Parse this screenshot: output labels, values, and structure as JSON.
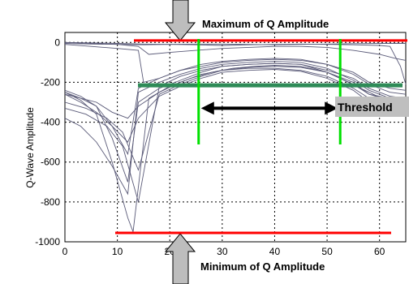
{
  "chart_data": {
    "type": "line",
    "title": "",
    "xlabel": "",
    "ylabel": "Q-Wave Amplitude",
    "xlim": [
      0,
      65
    ],
    "ylim": [
      -1000,
      50
    ],
    "x_ticks": [
      0,
      10,
      20,
      30,
      40,
      50,
      60
    ],
    "y_ticks": [
      0,
      -200,
      -400,
      -600,
      -800,
      -1000
    ],
    "x_tick_labels": [
      "0",
      "10",
      "20",
      "30",
      "40",
      "50",
      "60"
    ],
    "y_tick_labels": [
      "0",
      "-200",
      "-400",
      "-600",
      "-800",
      "-1000"
    ],
    "grid": true,
    "series": [
      {
        "x": [
          0,
          3,
          6,
          9,
          12,
          14,
          18,
          22,
          26,
          30,
          35,
          40,
          45,
          50,
          55,
          58,
          62,
          65
        ],
        "values": [
          -250,
          -280,
          -300,
          -350,
          -380,
          -320,
          -250,
          -200,
          -160,
          -140,
          -130,
          -130,
          -140,
          -170,
          -230,
          -280,
          -300,
          -300
        ]
      },
      {
        "x": [
          0,
          3,
          6,
          9,
          12,
          14,
          18,
          22,
          26,
          30,
          35,
          40,
          45,
          50,
          55,
          58,
          62,
          65
        ],
        "values": [
          -260,
          -300,
          -350,
          -420,
          -500,
          -380,
          -270,
          -220,
          -180,
          -150,
          -140,
          -135,
          -145,
          -180,
          -240,
          -300,
          -320,
          -320
        ]
      },
      {
        "x": [
          0,
          3,
          6,
          9,
          12,
          14,
          18,
          22,
          26,
          30,
          35,
          40,
          45,
          50,
          55,
          58,
          62,
          65
        ],
        "values": [
          -240,
          -270,
          -320,
          -480,
          -700,
          -300,
          -230,
          -190,
          -150,
          -120,
          -110,
          -105,
          -110,
          -150,
          -200,
          -260,
          -280,
          -280
        ]
      },
      {
        "x": [
          0,
          3,
          6,
          9,
          12,
          13,
          16,
          20,
          24,
          28,
          32,
          36,
          40,
          45,
          50,
          54,
          58,
          62,
          65
        ],
        "values": [
          -250,
          -290,
          -360,
          -600,
          -880,
          -950,
          -280,
          -220,
          -180,
          -150,
          -130,
          -120,
          -115,
          -120,
          -150,
          -200,
          -250,
          -300,
          -320
        ]
      },
      {
        "x": [
          0,
          3,
          6,
          9,
          12,
          14,
          18,
          22,
          26,
          30,
          35,
          40,
          45,
          50,
          55,
          58,
          62,
          65
        ],
        "values": [
          -380,
          -420,
          -500,
          -620,
          -760,
          -250,
          -200,
          -160,
          -130,
          -110,
          -100,
          -95,
          -100,
          -130,
          -190,
          -240,
          -280,
          -290
        ]
      },
      {
        "x": [
          0,
          3,
          6,
          9,
          12,
          14,
          18,
          22,
          26,
          30,
          35,
          40,
          45,
          50,
          55,
          58,
          62,
          65
        ],
        "values": [
          -260,
          -280,
          -320,
          -420,
          -560,
          -230,
          -180,
          -140,
          -110,
          -95,
          -85,
          -80,
          -85,
          -110,
          -160,
          -210,
          -250,
          -260
        ]
      },
      {
        "x": [
          0,
          5,
          10,
          14,
          15,
          18,
          22,
          26,
          30,
          35,
          40,
          45,
          50,
          55,
          58,
          62,
          65
        ],
        "values": [
          -10,
          -20,
          -30,
          -40,
          -200,
          -180,
          -140,
          -120,
          -100,
          -90,
          -85,
          -90,
          -110,
          -150,
          -200,
          -230,
          -240
        ]
      },
      {
        "x": [
          0,
          5,
          10,
          14,
          16,
          20,
          25,
          30,
          35,
          40,
          45,
          50,
          55,
          60,
          63,
          65
        ],
        "values": [
          0,
          -5,
          -10,
          -20,
          -60,
          -50,
          -40,
          -30,
          -25,
          -20,
          -20,
          -25,
          -40,
          -60,
          -80,
          -90
        ]
      },
      {
        "x": [
          0,
          5,
          10,
          15,
          20,
          25,
          30,
          35,
          40,
          45,
          50,
          55,
          60,
          62,
          64,
          65
        ],
        "values": [
          0,
          -2,
          -5,
          -8,
          -10,
          -12,
          -15,
          -12,
          -10,
          -8,
          -10,
          -12,
          -15,
          -20,
          -120,
          -210
        ]
      },
      {
        "x": [
          0,
          5,
          10,
          15,
          20,
          25,
          30,
          35,
          40,
          45,
          50,
          55,
          60,
          65
        ],
        "values": [
          -5,
          -8,
          -10,
          -12,
          -10,
          -8,
          -8,
          -10,
          -12,
          -10,
          -8,
          -6,
          -5,
          -5
        ]
      },
      {
        "x": [
          0,
          4,
          8,
          11,
          14,
          18,
          22,
          26,
          30,
          35,
          40,
          45,
          50,
          55,
          58,
          62,
          65
        ],
        "values": [
          -330,
          -360,
          -420,
          -520,
          -800,
          -220,
          -170,
          -140,
          -120,
          -110,
          -105,
          -110,
          -140,
          -180,
          -230,
          -270,
          -280
        ]
      },
      {
        "x": [
          0,
          4,
          8,
          11,
          14,
          18,
          22,
          26,
          30,
          35,
          40,
          45,
          50,
          55,
          58,
          62,
          65
        ],
        "values": [
          -300,
          -330,
          -380,
          -450,
          -640,
          -260,
          -210,
          -170,
          -140,
          -125,
          -120,
          -125,
          -150,
          -210,
          -260,
          -290,
          -300
        ]
      }
    ],
    "annotations": {
      "max_label": "Maximum  of Q Amplitude",
      "min_label": "Minimum of  Q  Amplitude",
      "threshold_label": "Threshold",
      "max_line_y": 10,
      "min_line_y": -955,
      "threshold_y": -215,
      "vline_x": [
        25.5,
        52.5
      ],
      "arrow_y": -330
    },
    "colors": {
      "red_line": "#ff0000",
      "green_line": "#00e000",
      "threshold_bar": "#2e8b57",
      "arrow": "#000000",
      "traces": "#5a5a78",
      "gray_arrow": "#bdbdbd",
      "threshold_box": "#bfbfbf"
    }
  }
}
